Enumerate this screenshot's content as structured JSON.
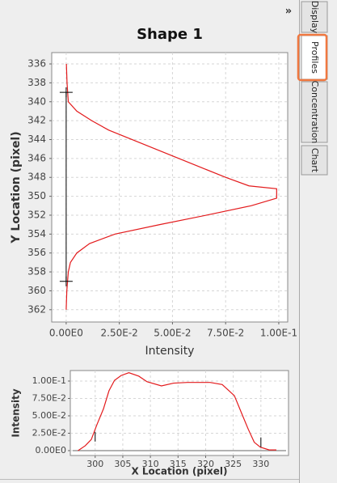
{
  "collapse_icon": "»",
  "tabs": [
    "Display",
    "Profiles",
    "Concentration",
    "Chart"
  ],
  "chart_data": [
    {
      "type": "line",
      "title": "Shape 1",
      "x_label": "Intensity",
      "y_label": "Y Location (pixel)",
      "grid": true,
      "xlim": [
        -0.0068,
        0.1042
      ],
      "ylim": [
        363.3,
        334.8
      ],
      "xticks": [
        {
          "value": 0,
          "label": "0.00E0"
        },
        {
          "value": 0.025,
          "label": "2.50E-2"
        },
        {
          "value": 0.05,
          "label": "5.00E-2"
        },
        {
          "value": 0.075,
          "label": "7.50E-2"
        },
        {
          "value": 0.1,
          "label": "1.00E-1"
        }
      ],
      "yticks": [
        336,
        338,
        340,
        342,
        344,
        346,
        348,
        350,
        352,
        354,
        356,
        358,
        360,
        362
      ],
      "series": [
        {
          "color": "#e31a1c",
          "values": [
            0.0001,
            0.0004,
            0.001,
            0.005,
            0.012,
            0.02,
            0.042,
            0.064,
            0.075,
            0.086,
            0.099,
            0.099,
            0.087,
            0.066,
            0.044,
            0.023,
            0.011,
            0.005,
            0.002,
            0.001,
            0.0003,
            0
          ],
          "y": [
            336,
            338,
            340,
            341,
            342,
            343,
            345,
            347,
            348,
            348.9,
            349.2,
            350.2,
            351,
            352,
            353,
            354,
            355,
            356,
            357,
            358,
            360,
            362
          ]
        }
      ],
      "markers": [
        {
          "x": 0,
          "y": 339
        },
        {
          "x": 0,
          "y": 359
        }
      ]
    },
    {
      "type": "line",
      "x_label": "X Location (pixel)",
      "y_label": "Intensity",
      "grid": true,
      "xlim": [
        295.5,
        335.0
      ],
      "ylim": [
        -0.007,
        0.1151
      ],
      "xticks": [
        300,
        305,
        310,
        315,
        320,
        325,
        330
      ],
      "yticks": [
        {
          "value": 0,
          "label": "0.00E0"
        },
        {
          "value": 0.025,
          "label": "2.50E-2"
        },
        {
          "value": 0.05,
          "label": "5.00E-2"
        },
        {
          "value": 0.075,
          "label": "7.50E-2"
        },
        {
          "value": 0.1,
          "label": "1.00E-1"
        }
      ],
      "series": [
        {
          "color": "#e31a1c",
          "x": [
            296.9,
            298.2,
            299.3,
            300.3,
            301.5,
            302.5,
            303.5,
            304.7,
            306.1,
            307.9,
            309.4,
            312.0,
            314.2,
            316.7,
            320.8,
            323.0,
            325.2,
            326.6,
            327.7,
            328.8,
            329.9,
            331.5,
            332.8
          ],
          "values": [
            0,
            0.007,
            0.016,
            0.037,
            0.06,
            0.086,
            0.101,
            0.108,
            0.112,
            0.107,
            0.099,
            0.093,
            0.097,
            0.098,
            0.098,
            0.095,
            0.079,
            0.052,
            0.031,
            0.012,
            0.005,
            0.001,
            0.001
          ]
        }
      ],
      "markers": [
        {
          "x": 300,
          "y": 0.02
        },
        {
          "x": 330,
          "y": 0.012
        }
      ]
    }
  ]
}
